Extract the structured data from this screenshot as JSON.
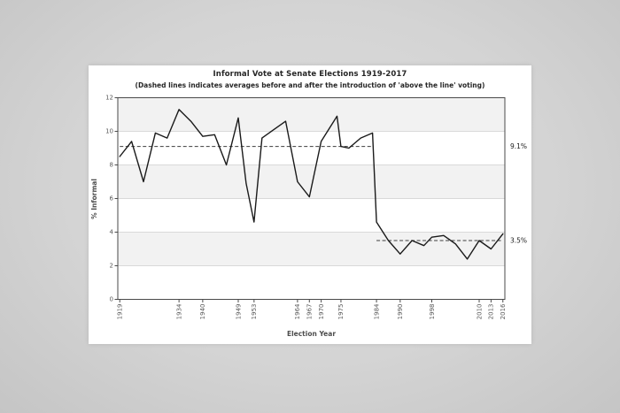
{
  "chart_data": {
    "type": "line",
    "title": "Informal Vote at Senate Elections 1919-2017",
    "subtitle": "(Dashed lines indicates averages before and after the introduction of 'above the line' voting)",
    "xlabel": "Election Year",
    "ylabel": "% Informal",
    "ylim": [
      0,
      12
    ],
    "y_ticks": [
      0,
      2,
      4,
      6,
      8,
      10,
      12
    ],
    "xlim": [
      1918.5,
      2016.5
    ],
    "x_tick_years": [
      1919,
      1934,
      1940,
      1949,
      1953,
      1964,
      1967,
      1970,
      1975,
      1984,
      1990,
      1998,
      2010,
      2013,
      2016
    ],
    "grid": "horizontal gridlines with alternating shaded bands",
    "shaded_bands": [
      [
        10,
        12
      ],
      [
        6,
        8
      ],
      [
        2,
        4
      ]
    ],
    "legend": "none",
    "series": [
      {
        "name": "% Informal",
        "x": [
          1919,
          1922,
          1925,
          1928,
          1931,
          1934,
          1937,
          1940,
          1943,
          1946,
          1949,
          1951,
          1953,
          1955,
          1958,
          1961,
          1964,
          1967,
          1970,
          1974,
          1975,
          1977,
          1980,
          1983,
          1984,
          1987,
          1990,
          1993,
          1996,
          1998,
          2001,
          2004,
          2007,
          2010,
          2013,
          2016
        ],
        "y": [
          8.5,
          9.4,
          7.0,
          9.9,
          9.6,
          11.3,
          10.6,
          9.7,
          9.8,
          8.0,
          10.8,
          6.9,
          4.6,
          9.6,
          10.1,
          10.6,
          7.0,
          6.1,
          9.4,
          10.9,
          9.1,
          9.0,
          9.6,
          9.9,
          4.6,
          3.5,
          2.7,
          3.5,
          3.2,
          3.7,
          3.8,
          3.3,
          2.4,
          3.5,
          3.0,
          3.9
        ]
      }
    ],
    "reference_lines": [
      {
        "label": "9.1%",
        "value": 9.1,
        "x_start": 1919,
        "x_end": 1983,
        "style": "dashed"
      },
      {
        "label": "3.5%",
        "value": 3.5,
        "x_start": 1984,
        "x_end": 2016,
        "style": "dashed"
      }
    ],
    "colors": {
      "line": "#1a1a1a",
      "reference_line": "#3d3d3d",
      "band_shade": "#f2f2f2",
      "gridline": "#d9d9d9",
      "plot_border": "#4a4a4a",
      "tick_label": "#595959",
      "title_text": "#262626",
      "annotation_text": "#1a1a1a",
      "card_background": "#ffffff",
      "page_background": "#d2d2d2"
    }
  }
}
